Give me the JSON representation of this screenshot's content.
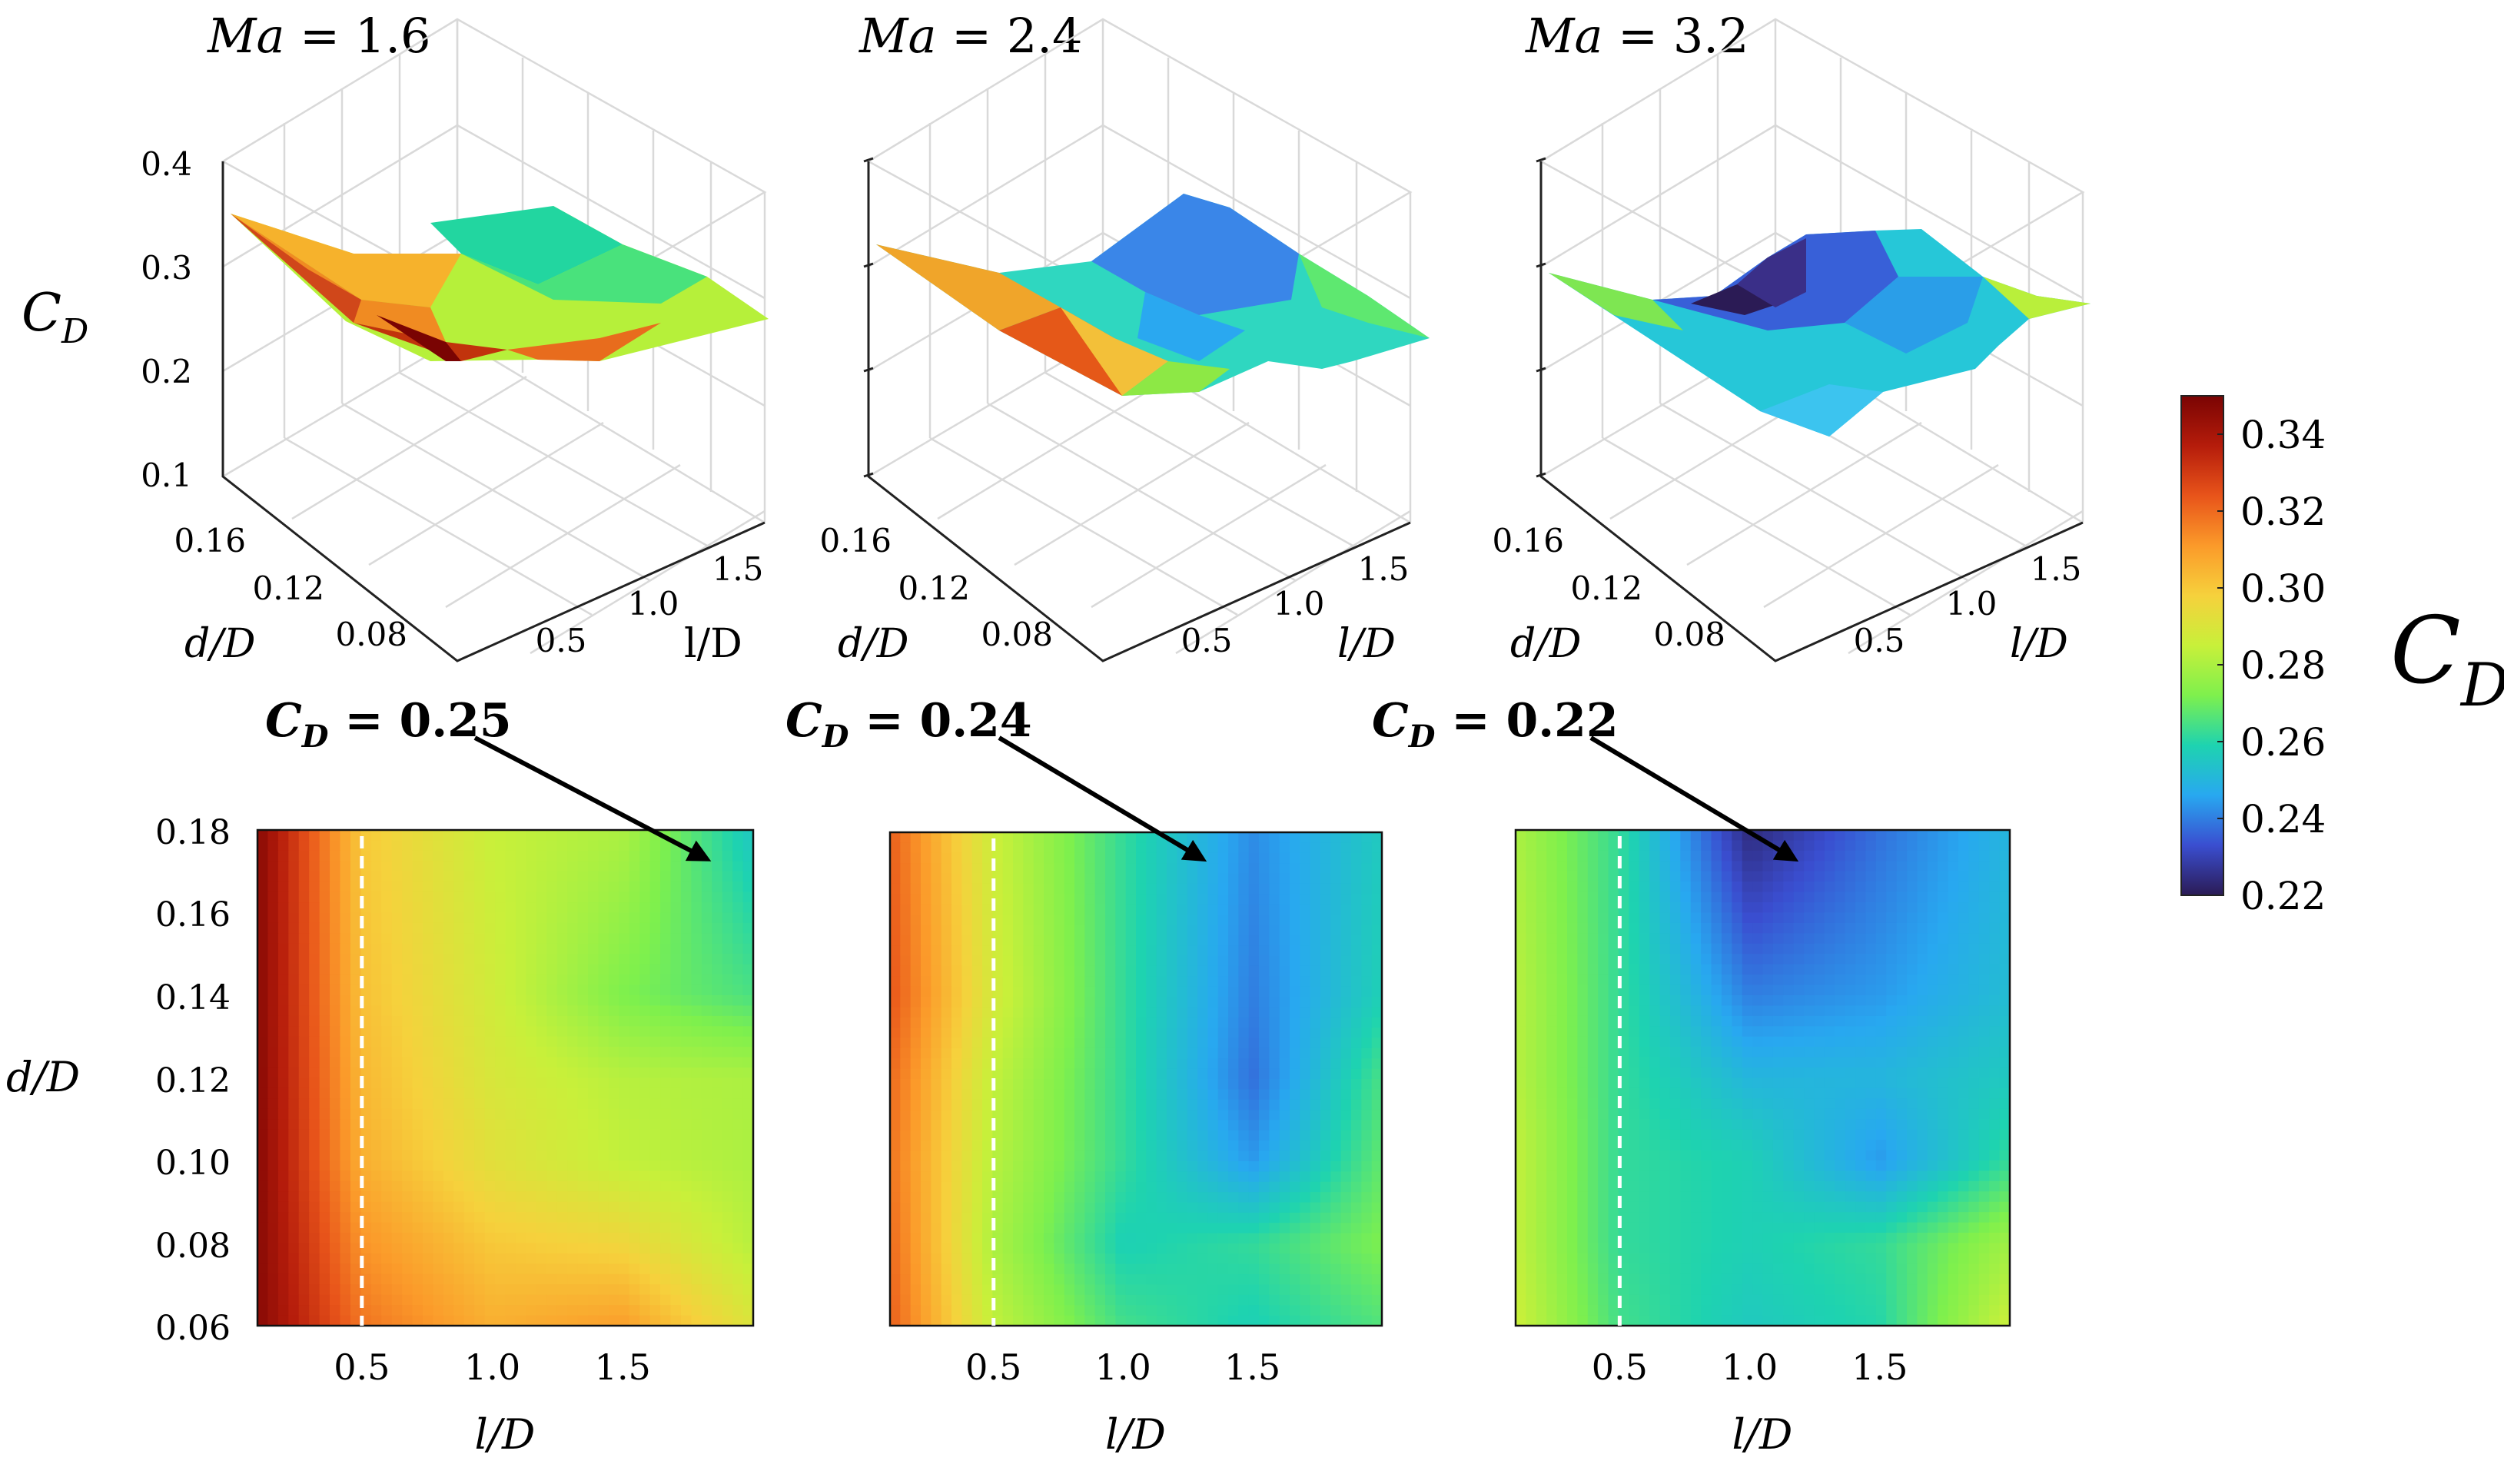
{
  "figure": {
    "colorbar": {
      "label": "C",
      "label_sub": "D",
      "ticks": [
        "0.34",
        "0.32",
        "0.30",
        "0.28",
        "0.26",
        "0.24",
        "0.22"
      ],
      "range": [
        0.22,
        0.35
      ],
      "colors": [
        "#2b1b55",
        "#3a4ed0",
        "#28a8f0",
        "#1ed3b0",
        "#7ef04d",
        "#c8f03a",
        "#f6d13c",
        "#fb9a2a",
        "#e8541a",
        "#b51c0b",
        "#7a0403"
      ]
    }
  },
  "chart_data": [
    {
      "type": "surface3d",
      "title_var": "Ma",
      "title_eq": " = ",
      "title_val": "1.6",
      "zlabel": "C",
      "zlabel_sub": "D",
      "zticks": [
        "0.4",
        "0.3",
        "0.2",
        "0.1"
      ],
      "zlim": [
        0.1,
        0.4
      ],
      "xlabel": "l/D",
      "xticks": [
        "0.5",
        "1.0",
        "1.5"
      ],
      "ylabel": "d/D",
      "yticks": [
        "0.16",
        "0.12",
        "0.08"
      ]
    },
    {
      "type": "surface3d",
      "title_var": "Ma",
      "title_eq": " = ",
      "title_val": "2.4",
      "zticks": [
        "",
        "",
        "",
        ""
      ],
      "zlim": [
        0.1,
        0.4
      ],
      "xlabel": "l/D",
      "xticks": [
        "0.5",
        "1.0",
        "1.5"
      ],
      "ylabel": "d/D",
      "yticks": [
        "0.16",
        "0.12",
        "0.08"
      ]
    },
    {
      "type": "surface3d",
      "title_var": "Ma",
      "title_eq": " = ",
      "title_val": "3.2",
      "zticks": [
        "",
        "",
        "",
        ""
      ],
      "zlim": [
        0.1,
        0.4
      ],
      "xlabel": "l/D",
      "xticks": [
        "0.5",
        "1.0",
        "1.5"
      ],
      "ylabel": "d/D",
      "yticks": [
        "0.16",
        "0.12",
        "0.08"
      ]
    },
    {
      "type": "heatmap",
      "mach": 1.6,
      "xlabel": "l/D",
      "ylabel": "d/D",
      "xlim": [
        0.1,
        2.0
      ],
      "ylim": [
        0.06,
        0.18
      ],
      "xticks": [
        "0.5",
        "1.0",
        "1.5"
      ],
      "yticks": [
        "0.18",
        "0.16",
        "0.14",
        "0.12",
        "0.10",
        "0.08",
        "0.06"
      ],
      "l_over_D": [
        0.1,
        0.5,
        1.0,
        1.5,
        2.0
      ],
      "d_over_D": [
        0.18,
        0.14,
        0.12,
        0.1,
        0.08,
        0.06
      ],
      "z": [
        [
          0.347,
          0.3,
          0.285,
          0.28,
          0.255
        ],
        [
          0.347,
          0.302,
          0.287,
          0.272,
          0.265
        ],
        [
          0.347,
          0.304,
          0.289,
          0.282,
          0.28
        ],
        [
          0.347,
          0.306,
          0.292,
          0.284,
          0.28
        ],
        [
          0.347,
          0.312,
          0.3,
          0.296,
          0.282
        ],
        [
          0.347,
          0.318,
          0.306,
          0.31,
          0.29
        ]
      ],
      "reference_line_x": 0.5,
      "annotation": {
        "prefix": "C",
        "sub": "D",
        "value": " = 0.25",
        "target": [
          1.8,
          0.172
        ]
      }
    },
    {
      "type": "heatmap",
      "mach": 2.4,
      "xlabel": "l/D",
      "xlim": [
        0.1,
        2.0
      ],
      "ylim": [
        0.06,
        0.18
      ],
      "xticks": [
        "0.5",
        "1.0",
        "1.5"
      ],
      "l_over_D": [
        0.1,
        0.5,
        1.0,
        1.5,
        2.0
      ],
      "d_over_D": [
        0.18,
        0.14,
        0.12,
        0.1,
        0.08,
        0.06
      ],
      "z": [
        [
          0.322,
          0.286,
          0.262,
          0.242,
          0.256
        ],
        [
          0.324,
          0.288,
          0.262,
          0.24,
          0.258
        ],
        [
          0.32,
          0.284,
          0.262,
          0.238,
          0.265
        ],
        [
          0.318,
          0.282,
          0.262,
          0.244,
          0.268
        ],
        [
          0.32,
          0.28,
          0.258,
          0.262,
          0.272
        ],
        [
          0.322,
          0.284,
          0.264,
          0.258,
          0.266
        ]
      ],
      "reference_line_x": 0.5,
      "annotation": {
        "prefix": "C",
        "sub": "D",
        "value": " = 0.24",
        "target": [
          1.3,
          0.176
        ]
      }
    },
    {
      "type": "heatmap",
      "mach": 3.2,
      "xlabel": "l/D",
      "xlim": [
        0.1,
        2.0
      ],
      "ylim": [
        0.06,
        0.18
      ],
      "xticks": [
        "0.5",
        "1.0",
        "1.5"
      ],
      "l_over_D": [
        0.1,
        0.5,
        1.0,
        1.5,
        2.0
      ],
      "d_over_D": [
        0.18,
        0.14,
        0.12,
        0.1,
        0.08,
        0.06
      ],
      "z": [
        [
          0.28,
          0.262,
          0.224,
          0.238,
          0.25
        ],
        [
          0.282,
          0.262,
          0.24,
          0.244,
          0.252
        ],
        [
          0.282,
          0.262,
          0.25,
          0.25,
          0.256
        ],
        [
          0.284,
          0.262,
          0.258,
          0.244,
          0.262
        ],
        [
          0.284,
          0.262,
          0.258,
          0.262,
          0.278
        ],
        [
          0.286,
          0.264,
          0.256,
          0.26,
          0.286
        ]
      ],
      "reference_line_x": 0.5,
      "annotation": {
        "prefix": "C",
        "sub": "D",
        "value": " = 0.22",
        "target": [
          1.2,
          0.176
        ]
      }
    }
  ]
}
